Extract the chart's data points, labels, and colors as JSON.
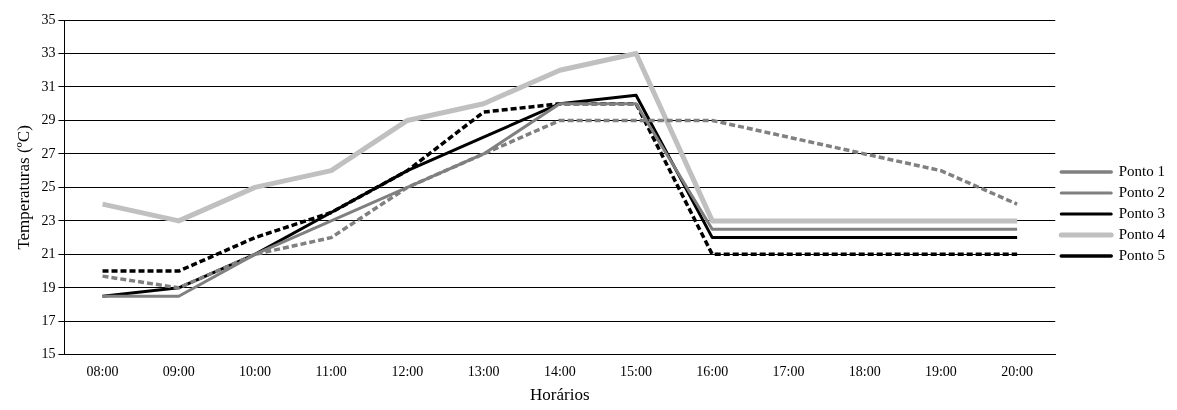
{
  "chart_data": {
    "type": "line",
    "xlabel": "Horários",
    "ylabel": "Temperaturas (ºC)",
    "categories": [
      "08:00",
      "09:00",
      "10:00",
      "11:00",
      "12:00",
      "13:00",
      "14:00",
      "15:00",
      "16:00",
      "17:00",
      "18:00",
      "19:00",
      "20:00"
    ],
    "series": [
      {
        "name": "Ponto 1",
        "color": "#808080",
        "line_style": "dashed",
        "values": [
          19.7,
          19,
          21,
          22,
          25,
          27,
          29,
          29,
          29,
          28,
          27,
          26,
          24
        ]
      },
      {
        "name": "Ponto 2",
        "color": "#808080",
        "line_style": "solid",
        "values": [
          18.5,
          18.5,
          21,
          23,
          25,
          27,
          30,
          30,
          22.5,
          22.5,
          22.5,
          22.5,
          22.5
        ]
      },
      {
        "name": "Ponto 3",
        "color": "#000000",
        "line_style": "solid",
        "values": [
          18.5,
          19,
          21,
          23.5,
          26,
          28,
          30,
          30.5,
          22,
          22,
          22,
          22,
          22
        ]
      },
      {
        "name": "Ponto 4",
        "color": "#c0c0c0",
        "line_style": "solid",
        "values": [
          24,
          23,
          25,
          26,
          29,
          30,
          32,
          33,
          23,
          23,
          23,
          23,
          23
        ]
      },
      {
        "name": "Ponto 5",
        "color": "#000000",
        "line_style": "dashed",
        "values": [
          20,
          20,
          22,
          23.5,
          26,
          29.5,
          30,
          30,
          21,
          21,
          21,
          21,
          21
        ]
      }
    ],
    "ylim": [
      15,
      35
    ],
    "yticks": [
      15,
      17,
      19,
      21,
      23,
      25,
      27,
      29,
      31,
      33,
      35
    ],
    "grid": "y",
    "legend": "right",
    "marker": "none"
  }
}
